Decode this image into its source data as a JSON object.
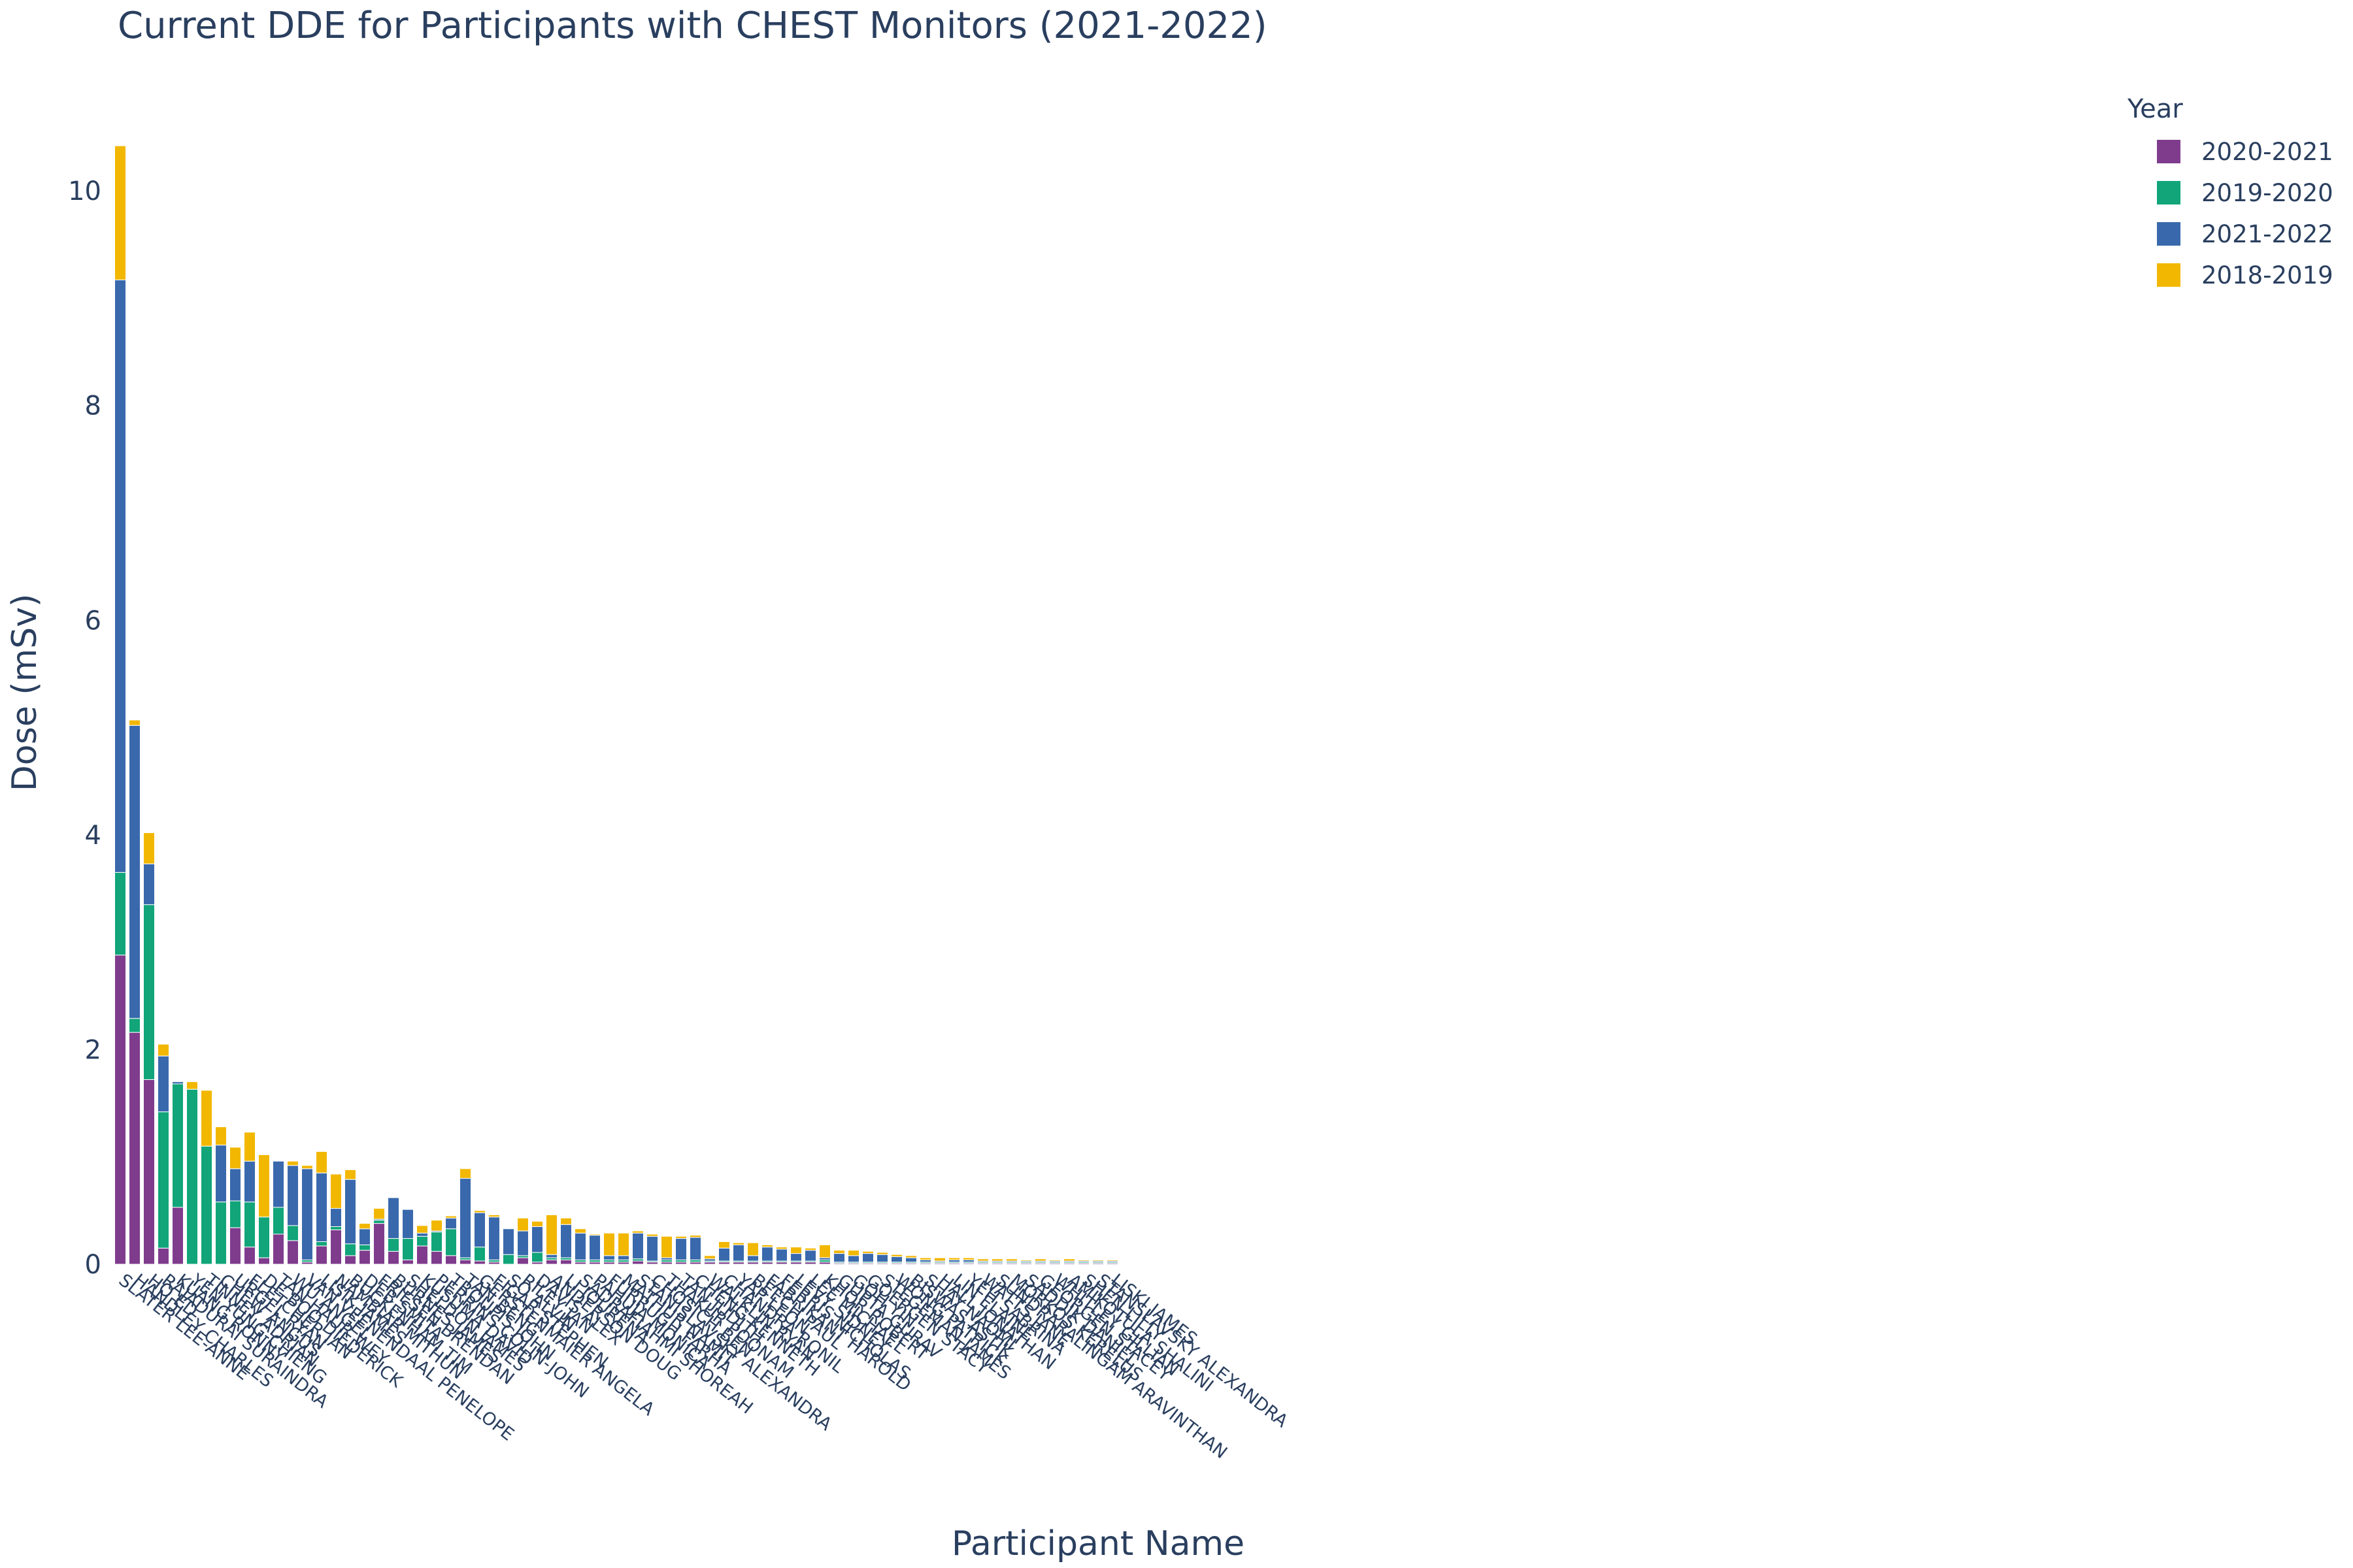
{
  "chart_data": {
    "type": "bar",
    "barmode": "stack",
    "title": "Current DDE for Participants with CHEST Monitors (2021-2022)",
    "xlabel": "Participant Name",
    "ylabel": "Dose (mSv)",
    "ylim": [
      0,
      10.5
    ],
    "yticks": [
      0,
      2,
      4,
      6,
      8,
      10
    ],
    "grid": false,
    "legend": {
      "title": "Year",
      "placement": "top-right"
    },
    "categories": [
      "SLATER LEE-ANNE",
      "HANDLEY CHARLES",
      "HO ED",
      "RAJADURAI SURAINDRA",
      "KUANG RONNY",
      "YEN YUNG-CHIENG",
      "TINNEY ADRIAN",
      "CHEW ANGUS",
      "URGEL RYAN",
      "FLETCHER IAN",
      "DE BOO DIEDERICK",
      "TAN HAUR WEY",
      "WU ANGEL",
      "VAN VEENENDAAL PENELOPE",
      "LISIK JAMES",
      "NAMBIAR MITHUN",
      "BUCKENHAM TIM",
      "DEB SMITA",
      "FRIESEN BRENDAN",
      "BURNES JAMES",
      "SHELDON JAMES",
      "KUSUMA DAVID",
      "PERRINS COLIN-JOHN",
      "TROUPIS JOHN",
      "TAN BENG",
      "GERSTENMAIER ANGELA",
      "FIGAR STEPHEN",
      "SO ALVIN",
      "RILEY JAN",
      "DAVIS ALEX",
      "ANDERSON DOUG",
      "LI JOURENA",
      "SADRAFIAHMI SHOREAH",
      "PAHUJA MONICA",
      "FURRUGH FARHA",
      "MATHUR NAMIT",
      "STANISLAVSKY ALEXANDRA",
      "CHOSICH BEN",
      "THAKUR POONAM",
      "TAN JUDITH",
      "CHENG KENNETH",
      "WALKLIN RYAN",
      "CHANDRA RONIL",
      "YAP LEON",
      "BEECH PAUL",
      "FABRIKANT HAROLD",
      "FERRIS NICHOLAS",
      "LEVY SIDNEY",
      "LEE MICHAEL",
      "KHOR ROBERT",
      "GUPTA GURAV",
      "GOH YIN",
      "GOERGEN STACY",
      "STEGEMAN JAMES",
      "WONG PATRICK",
      "BISWAS ASTIK",
      "SHAY NAOMI",
      "HALL JONATHAN",
      "LIN ELAINE",
      "YEH SABRINA",
      "WATTS JANE",
      "SUNDRARALINGAM ARAVINTHAN",
      "MORKOS KERELUS",
      "SADDIK DANIEL",
      "GEORGEN STACEY",
      "WHITLEY GILLIAN",
      "AMIKOTULA SHALINI",
      "SHEN LILLY",
      "STANSLAVSKY ALEXANDRA",
      "LISKI JAMES"
    ],
    "series": [
      {
        "name": "2020-2021",
        "color": "#7f3c8d",
        "values": [
          2.88,
          2.16,
          1.72,
          0.15,
          0.53,
          0,
          0,
          0,
          0.34,
          0.16,
          0.06,
          0.28,
          0.22,
          0.02,
          0.17,
          0.32,
          0.08,
          0.13,
          0.38,
          0.12,
          0.04,
          0.17,
          0.12,
          0.08,
          0.04,
          0.03,
          0.02,
          0,
          0.06,
          0.02,
          0.04,
          0.04,
          0.02,
          0.02,
          0.02,
          0.02,
          0.03,
          0.02,
          0.02,
          0.02,
          0.02,
          0.02,
          0.02,
          0.02,
          0.02,
          0.02,
          0.02,
          0.02,
          0.02,
          0.02,
          0.01,
          0.01,
          0.01,
          0.01,
          0.01,
          0.01,
          0.01,
          0.01,
          0.01,
          0.01,
          0.01,
          0.01,
          0.01,
          0.01,
          0.01,
          0.01,
          0.01,
          0.01,
          0.01,
          0.01
        ]
      },
      {
        "name": "2019-2020",
        "color": "#11a579",
        "values": [
          0.77,
          0.13,
          1.63,
          1.27,
          1.15,
          1.63,
          1.1,
          0.58,
          0.25,
          0.42,
          0.38,
          0.25,
          0.14,
          0.02,
          0.04,
          0.03,
          0.11,
          0.05,
          0.03,
          0.12,
          0.2,
          0.09,
          0.18,
          0.25,
          0.02,
          0.13,
          0.02,
          0.09,
          0.02,
          0.09,
          0.02,
          0.02,
          0.02,
          0.02,
          0.02,
          0.02,
          0.02,
          0.01,
          0.02,
          0.02,
          0.02,
          0.01,
          0.01,
          0.01,
          0.01,
          0.01,
          0.01,
          0.01,
          0.01,
          0.02,
          0.01,
          0.01,
          0.01,
          0.01,
          0.01,
          0.01,
          0.01,
          0.01,
          0.01,
          0.01,
          0.01,
          0.01,
          0.01,
          0.01,
          0.01,
          0.01,
          0.01,
          0.01,
          0.01,
          0.01
        ]
      },
      {
        "name": "2021-2022",
        "color": "#3969ac",
        "values": [
          5.52,
          2.73,
          0.38,
          0.52,
          0.02,
          0,
          0,
          0.53,
          0.3,
          0.38,
          0,
          0.43,
          0.56,
          0.85,
          0.64,
          0.17,
          0.6,
          0.15,
          0.01,
          0.38,
          0.27,
          0.03,
          0.01,
          0.1,
          0.74,
          0.32,
          0.4,
          0.24,
          0.23,
          0.24,
          0.03,
          0.31,
          0.25,
          0.23,
          0.04,
          0.04,
          0.24,
          0.23,
          0.02,
          0.2,
          0.21,
          0.02,
          0.12,
          0.15,
          0.05,
          0.13,
          0.11,
          0.07,
          0.1,
          0.02,
          0.08,
          0.06,
          0.08,
          0.07,
          0.05,
          0.04,
          0.02,
          0.01,
          0.02,
          0.02,
          0.01,
          0.01,
          0.01,
          0.01,
          0.01,
          0.01,
          0.01,
          0.01,
          0.01,
          0.01
        ]
      },
      {
        "name": "2018-2019",
        "color": "#f2b701",
        "values": [
          1.25,
          0.05,
          0.29,
          0.11,
          0,
          0.07,
          0.52,
          0.17,
          0.2,
          0.27,
          0.58,
          0,
          0.04,
          0.03,
          0.2,
          0.32,
          0.09,
          0.05,
          0.1,
          0,
          0,
          0.07,
          0.1,
          0.02,
          0.09,
          0.02,
          0.02,
          0,
          0.12,
          0.05,
          0.37,
          0.06,
          0.04,
          0.01,
          0.21,
          0.21,
          0.02,
          0.02,
          0.2,
          0.02,
          0.02,
          0.03,
          0.06,
          0.02,
          0.12,
          0.02,
          0.02,
          0.06,
          0.02,
          0.12,
          0.03,
          0.05,
          0.02,
          0.02,
          0.02,
          0.02,
          0.02,
          0.03,
          0.02,
          0.02,
          0.02,
          0.02,
          0.02,
          0.01,
          0.02,
          0.01,
          0.02,
          0.01,
          0.01,
          0.01
        ]
      }
    ],
    "legend_order": [
      "2020-2021",
      "2019-2020",
      "2021-2022",
      "2018-2019"
    ]
  }
}
